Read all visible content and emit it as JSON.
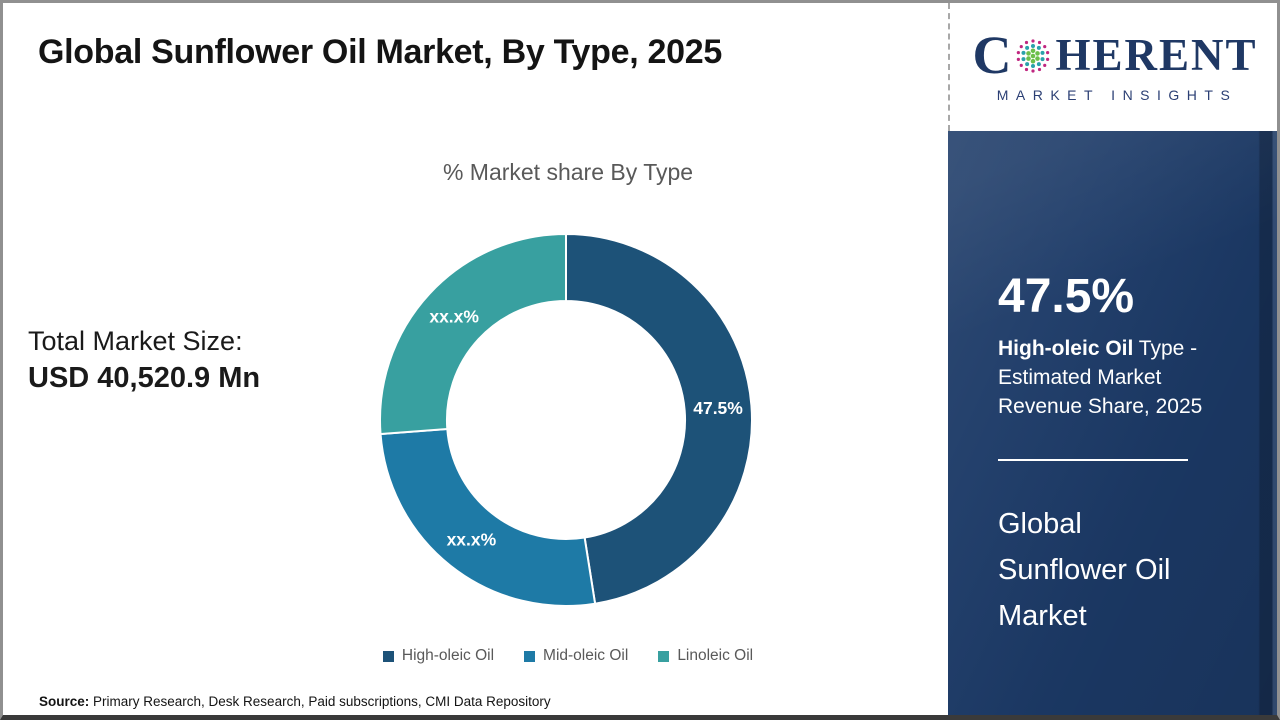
{
  "header": {
    "title": "Global Sunflower Oil Market, By Type, 2025"
  },
  "logo": {
    "word_prefix": "C",
    "word_suffix": "HERENT",
    "subtitle": "MARKET INSIGHTS",
    "globe_icon": "dotted-globe-icon",
    "text_color": "#1f3864",
    "dot_colors": {
      "outer": "#c02780",
      "middle": "#2aa2ab",
      "inner": "#6cbf4b"
    }
  },
  "market_size": {
    "label": "Total Market Size:",
    "value": "USD 40,520.9 Mn"
  },
  "chart_data": {
    "type": "pie",
    "donut": true,
    "title": "% Market share By Type",
    "categories": [
      "High-oleic Oil",
      "Mid-oleic Oil",
      "Linoleic Oil"
    ],
    "values": [
      47.5,
      26.3,
      26.2
    ],
    "slice_labels": [
      "47.5%",
      "xx.x%",
      "xx.x%"
    ],
    "colors": [
      "#1d5278",
      "#1e7aa6",
      "#38a0a0"
    ],
    "start_angle_deg": 0,
    "direction": "clockwise",
    "inner_radius_ratio": 0.64,
    "legend_position": "bottom",
    "slice_label_color": "#ffffff"
  },
  "sidebar": {
    "headline_value": "47.5%",
    "description_bold": "High-oleic Oil",
    "description_rest": " Type -\nEstimated Market\nRevenue Share, 2025",
    "market_name": "Global\nSunflower Oil\nMarket",
    "background_color": "#1c3a67"
  },
  "source": {
    "label": "Source:",
    "text": " Primary Research, Desk Research, Paid subscriptions, CMI Data Repository"
  }
}
